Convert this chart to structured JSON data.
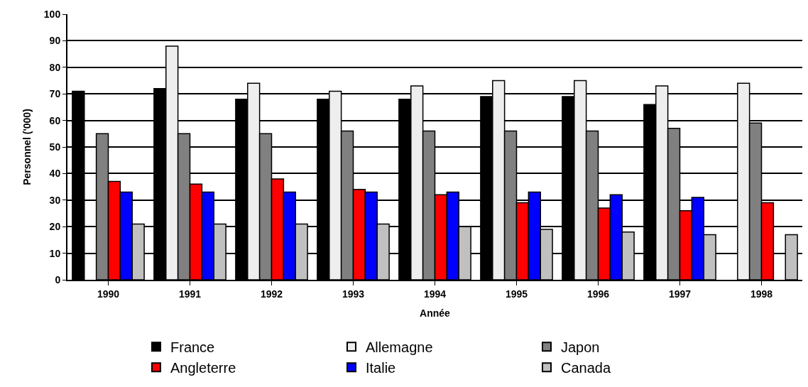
{
  "chart_data": {
    "type": "bar",
    "xlabel": "Année",
    "ylabel": "Personnel ('000)",
    "categories": [
      "1990",
      "1991",
      "1992",
      "1993",
      "1994",
      "1995",
      "1996",
      "1997",
      "1998"
    ],
    "series": [
      {
        "name": "France",
        "color": "#000000",
        "values": [
          71,
          72,
          68,
          68,
          68,
          69,
          69,
          66,
          null
        ]
      },
      {
        "name": "Allemagne",
        "color": "#eeeeee",
        "values": [
          null,
          88,
          74,
          71,
          73,
          75,
          75,
          73,
          74
        ]
      },
      {
        "name": "Japon",
        "color": "#808080",
        "values": [
          55,
          55,
          55,
          56,
          56,
          56,
          56,
          57,
          59
        ]
      },
      {
        "name": "Angleterre",
        "color": "#ff0000",
        "values": [
          37,
          36,
          38,
          34,
          32,
          29,
          27,
          26,
          29
        ]
      },
      {
        "name": "Italie",
        "color": "#0000ff",
        "values": [
          33,
          33,
          33,
          33,
          33,
          33,
          32,
          31,
          null
        ]
      },
      {
        "name": "Canada",
        "color": "#c0c0c0",
        "values": [
          21,
          21,
          21,
          21,
          20,
          19,
          18,
          17,
          17
        ]
      }
    ],
    "ylim": [
      0,
      100
    ],
    "yticks": [
      0,
      10,
      20,
      30,
      40,
      50,
      60,
      70,
      80,
      90,
      100
    ],
    "grid": "y",
    "legend": "bottom"
  }
}
